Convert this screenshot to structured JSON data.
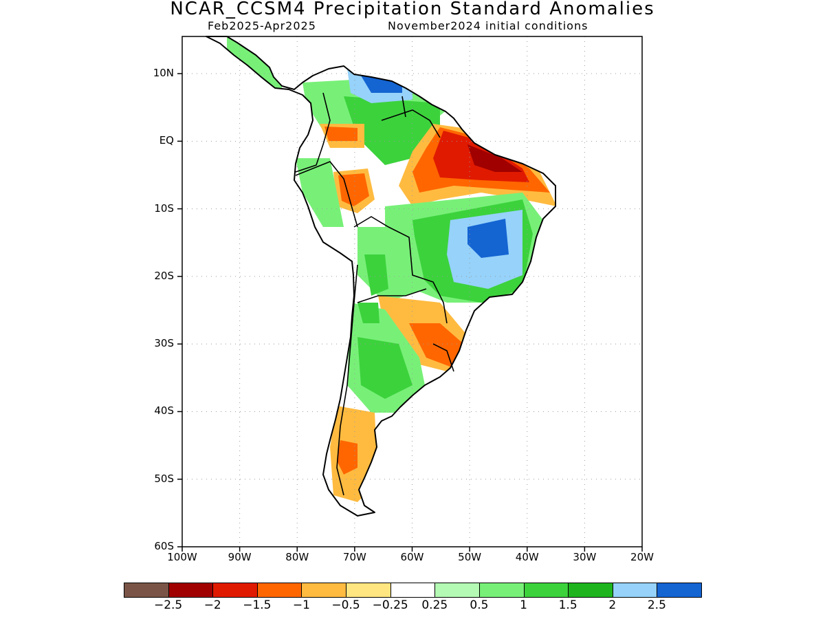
{
  "title": "NCAR_CCSM4 Precipitation Standard Anomalies",
  "subtitle_left": "Feb2025-Apr2025",
  "subtitle_right": "November2024 initial conditions",
  "lat_ticks": [
    {
      "label": "10N",
      "value": 10
    },
    {
      "label": "EQ",
      "value": 0
    },
    {
      "label": "10S",
      "value": -10
    },
    {
      "label": "20S",
      "value": -20
    },
    {
      "label": "30S",
      "value": -30
    },
    {
      "label": "40S",
      "value": -40
    },
    {
      "label": "50S",
      "value": -50
    },
    {
      "label": "60S",
      "value": -60
    }
  ],
  "lon_ticks": [
    {
      "label": "100W",
      "value": -100
    },
    {
      "label": "90W",
      "value": -90
    },
    {
      "label": "80W",
      "value": -80
    },
    {
      "label": "70W",
      "value": -70
    },
    {
      "label": "60W",
      "value": -60
    },
    {
      "label": "50W",
      "value": -50
    },
    {
      "label": "40W",
      "value": -40
    },
    {
      "label": "30W",
      "value": -30
    },
    {
      "label": "20W",
      "value": -20
    }
  ],
  "lat_range": [
    -60,
    15.5
  ],
  "lon_range": [
    -100,
    -20
  ],
  "grid": true,
  "legend": {
    "colors": [
      "#7a5547",
      "#a00000",
      "#e01a00",
      "#ff6600",
      "#ffbb40",
      "#ffe680",
      "#ffffff",
      "#b4fab4",
      "#78f078",
      "#3cd23c",
      "#1eb41e",
      "#96d2fa",
      "#1464d2"
    ],
    "labels": [
      "-2.5",
      "-2",
      "-1.5",
      "-1",
      "-0.5",
      "-0.25",
      "0.25",
      "0.5",
      "1",
      "1.5",
      "2",
      "2.5"
    ]
  }
}
